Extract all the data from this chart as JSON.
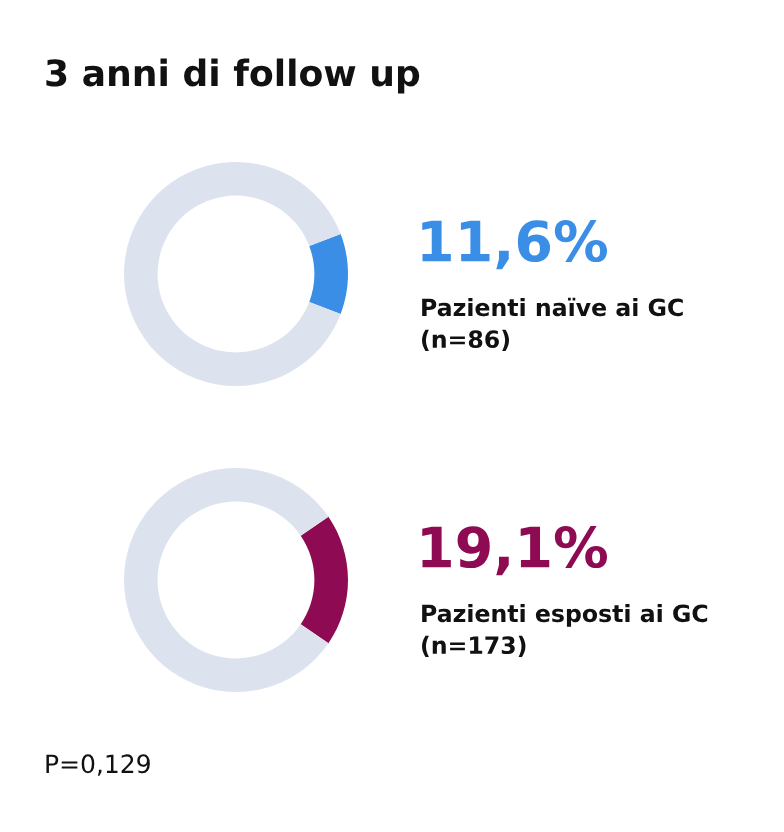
{
  "chart_data": [
    {
      "type": "donut",
      "title": "3 anni di follow up",
      "categories": [
        null,
        null
      ],
      "values": [
        11.6,
        88.4
      ],
      "colors": [
        "#3a8ee6",
        "#dde3ee"
      ],
      "value_labels": [
        "11,6%",
        null
      ],
      "annotations": [
        "Pazienti naïve ai GC\n(n=86)"
      ]
    },
    {
      "type": "donut",
      "categories": [
        null,
        null
      ],
      "values": [
        19.1,
        80.9
      ],
      "colors": [
        "#8e0a52",
        "#dde3ee"
      ],
      "value_labels": [
        "19,1%",
        null
      ],
      "annotations": [
        "Pazienti esposti ai GC\n(n=173)",
        "P=0,129"
      ]
    }
  ]
}
